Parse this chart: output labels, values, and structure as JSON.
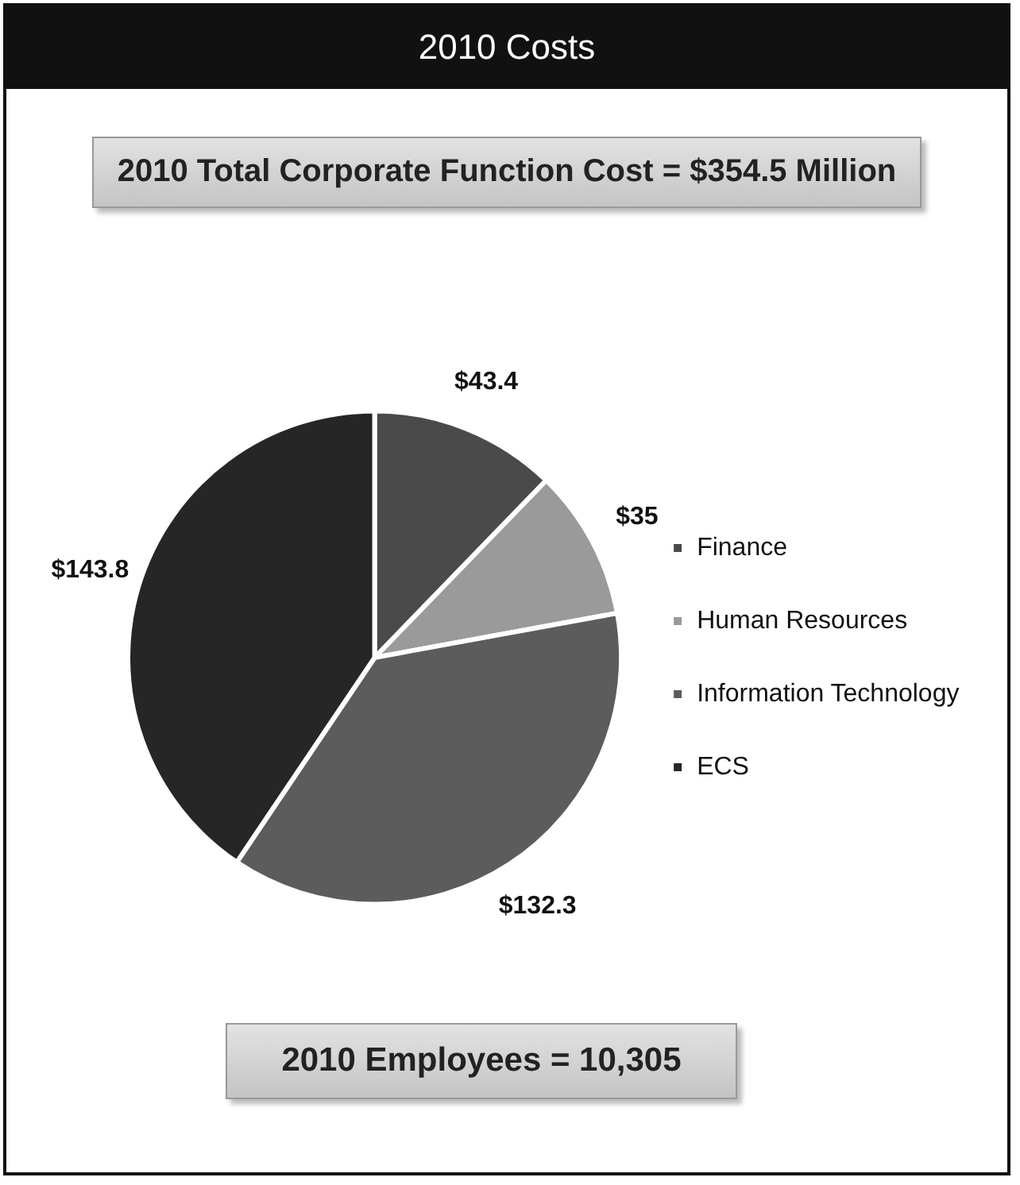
{
  "chart_data": {
    "type": "pie",
    "title": "2010 Costs",
    "subtitle": "2010 Total Corporate Function Cost = $354.5 Million",
    "categories": [
      "Finance",
      "Human Resources",
      "Information Technology",
      "ECS"
    ],
    "values": [
      43.4,
      35,
      132.3,
      143.8
    ],
    "colors": [
      "#4a4a4a",
      "#9a9a9a",
      "#5c5c5c",
      "#262626"
    ],
    "value_labels": [
      "$43.4",
      "$35",
      "$132.3",
      "$143.8"
    ],
    "legend": "right",
    "annotations": [
      "2010 Employees = 10,305"
    ]
  }
}
